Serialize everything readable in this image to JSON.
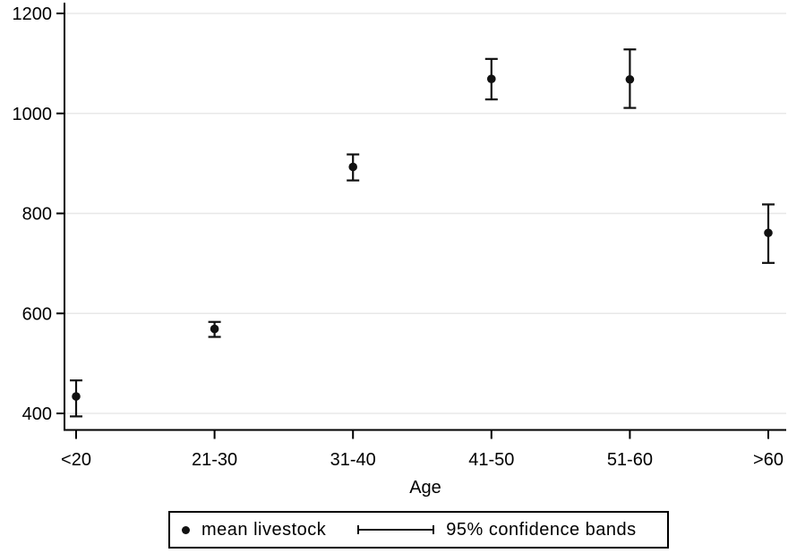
{
  "chart_data": {
    "type": "scatter",
    "subtype": "point-with-error-bars",
    "title": "",
    "xlabel": "Age",
    "ylabel": "",
    "categories": [
      "<20",
      "21-30",
      "31-40",
      "41-50",
      "51-60",
      ">60"
    ],
    "series": [
      {
        "name": "mean livestock",
        "values": [
          434,
          569,
          893,
          1069,
          1068,
          761
        ],
        "ci_low": [
          394,
          553,
          866,
          1028,
          1011,
          701
        ],
        "ci_high": [
          466,
          583,
          918,
          1109,
          1128,
          818
        ]
      }
    ],
    "yticks": [
      400,
      600,
      800,
      1000,
      1200
    ],
    "ylim": [
      368,
      1220
    ],
    "grid": "horizontal-faint",
    "legend": {
      "position": "bottom",
      "items": [
        {
          "marker": "dot",
          "label": "mean livestock"
        },
        {
          "marker": "error-bar",
          "label": "95% confidence bands"
        }
      ]
    }
  },
  "colors": {
    "background": "#ffffff",
    "axis": "#000000",
    "text": "#000000",
    "marker": "#111111",
    "grid": "#e8e8e8",
    "legend_border": "#000000"
  }
}
